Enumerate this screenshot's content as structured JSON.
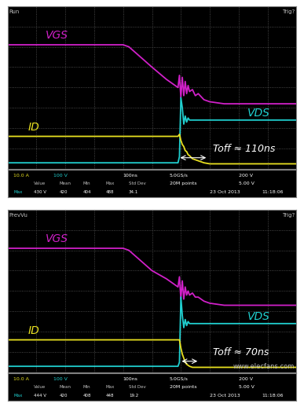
{
  "chart_data": [
    {
      "type": "line",
      "status": "Run",
      "trigger": "Trig?",
      "xlim": [
        0,
        10
      ],
      "ylim": [
        0,
        8
      ],
      "xticks": [
        0,
        1,
        2,
        3,
        4,
        5,
        6,
        7,
        8,
        9,
        10
      ],
      "yticks": [
        0,
        1,
        2,
        3,
        4,
        5,
        6,
        7,
        8
      ],
      "grid": true,
      "tick_labels": false,
      "x": [
        0,
        1,
        2,
        3,
        4,
        4.2,
        5.0,
        5.5,
        5.8,
        5.9,
        5.95,
        6.0,
        6.05,
        6.1,
        6.15,
        6.2,
        6.25,
        6.3,
        6.4,
        6.5,
        6.6,
        6.8,
        7.0,
        7.5,
        8,
        9,
        10
      ],
      "series": [
        {
          "name": "VGS",
          "color": "#d020c8",
          "values": [
            6.1,
            6.1,
            6.1,
            6.1,
            6.1,
            6.0,
            5.0,
            4.4,
            4.1,
            4.0,
            4.6,
            3.5,
            4.5,
            3.6,
            4.3,
            3.7,
            4.1,
            3.8,
            3.9,
            3.6,
            3.7,
            3.4,
            3.3,
            3.2,
            3.2,
            3.2,
            3.2
          ]
        },
        {
          "name": "VDS",
          "color": "#20d0d0",
          "values": [
            0.3,
            0.3,
            0.3,
            0.3,
            0.3,
            0.3,
            0.3,
            0.3,
            0.3,
            0.3,
            0.6,
            3.5,
            3.0,
            2.2,
            2.6,
            2.3,
            2.5,
            2.4,
            2.4,
            2.4,
            2.4,
            2.4,
            2.4,
            2.4,
            2.4,
            2.4,
            2.4
          ]
        },
        {
          "name": "ID",
          "color": "#e8e020",
          "values": [
            1.6,
            1.6,
            1.6,
            1.6,
            1.6,
            1.6,
            1.6,
            1.6,
            1.6,
            1.6,
            1.7,
            1.4,
            1.2,
            1.1,
            0.9,
            0.85,
            0.7,
            0.65,
            0.5,
            0.45,
            0.4,
            0.3,
            0.25,
            0.25,
            0.25,
            0.25,
            0.25
          ]
        }
      ],
      "annotations": [
        "Toff ≈ 110ns"
      ],
      "readout": {
        "channel_scales": [
          "10.0 A",
          "100 V"
        ],
        "timebase": "100ns",
        "sample_rate": "5.0GS/s",
        "record_length": "20M points",
        "right_scales": [
          "200 V",
          "5.00 V"
        ],
        "date": "23 Oct 2013",
        "time": "11:18:06",
        "measurement_header": [
          "Value",
          "Mean",
          "Min",
          "Max",
          "Std Dev"
        ],
        "measurement_row": [
          "Max",
          "430 V",
          "420",
          "404",
          "488",
          "34.1"
        ]
      }
    },
    {
      "type": "line",
      "status": "PrevVu",
      "trigger": "Trig?",
      "xlim": [
        0,
        10
      ],
      "ylim": [
        0,
        8
      ],
      "xticks": [
        0,
        1,
        2,
        3,
        4,
        5,
        6,
        7,
        8,
        9,
        10
      ],
      "yticks": [
        0,
        1,
        2,
        3,
        4,
        5,
        6,
        7,
        8
      ],
      "grid": true,
      "tick_labels": false,
      "x": [
        0,
        1,
        2,
        3,
        4,
        4.2,
        5.0,
        5.5,
        5.8,
        5.9,
        5.95,
        6.0,
        6.05,
        6.1,
        6.15,
        6.2,
        6.25,
        6.3,
        6.4,
        6.5,
        6.6,
        6.8,
        7.0,
        7.5,
        8,
        9,
        10
      ],
      "series": [
        {
          "name": "VGS",
          "color": "#d020c8",
          "values": [
            6.1,
            6.1,
            6.1,
            6.1,
            6.1,
            6.0,
            5.0,
            4.6,
            4.3,
            4.2,
            4.7,
            3.6,
            4.5,
            3.6,
            4.2,
            3.8,
            4.0,
            3.8,
            3.9,
            3.7,
            3.7,
            3.5,
            3.4,
            3.3,
            3.3,
            3.3,
            3.3
          ]
        },
        {
          "name": "VDS",
          "color": "#20d0d0",
          "values": [
            0.3,
            0.3,
            0.3,
            0.3,
            0.3,
            0.3,
            0.3,
            0.3,
            0.3,
            0.3,
            0.5,
            3.7,
            2.8,
            2.2,
            2.6,
            2.3,
            2.5,
            2.4,
            2.4,
            2.4,
            2.4,
            2.4,
            2.4,
            2.4,
            2.4,
            2.4,
            2.4
          ]
        },
        {
          "name": "ID",
          "color": "#e8e020",
          "values": [
            1.6,
            1.6,
            1.6,
            1.6,
            1.6,
            1.6,
            1.6,
            1.6,
            1.6,
            1.6,
            1.6,
            1.2,
            0.9,
            0.7,
            0.5,
            0.4,
            0.35,
            0.3,
            0.25,
            0.25,
            0.25,
            0.25,
            0.25,
            0.25,
            0.25,
            0.25,
            0.25
          ]
        }
      ],
      "annotations": [
        "Toff ≈ 70ns"
      ],
      "readout": {
        "channel_scales": [
          "10.0 A",
          "100 V"
        ],
        "timebase": "100ns",
        "sample_rate": "5.0GS/s",
        "record_length": "20M points",
        "right_scales": [
          "200 V",
          "5.00 V"
        ],
        "date": "23 Oct 2013",
        "time": "11:18:06",
        "measurement_header": [
          "Value",
          "Mean",
          "Min",
          "Max",
          "Std Dev"
        ],
        "measurement_row": [
          "Max",
          "444 V",
          "420",
          "408",
          "448",
          "19.2"
        ]
      }
    }
  ],
  "watermark": "www.elecfans.com"
}
